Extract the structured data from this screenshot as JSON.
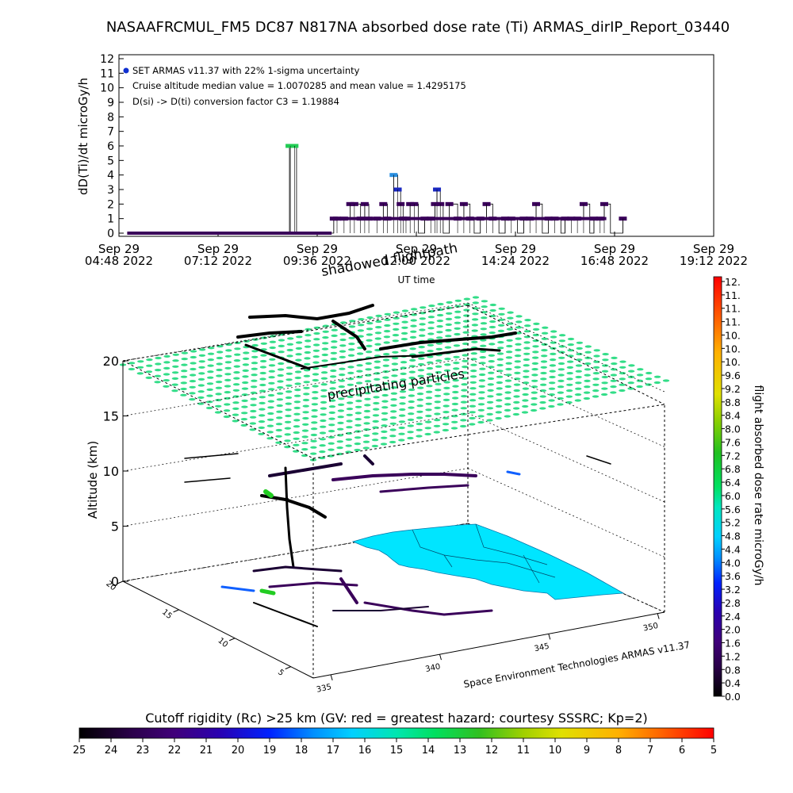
{
  "title": "NASAAFRCMUL_FM5 DC87 N817NA absorbed dose rate (Ti) ARMAS_dirIP_Report_03440",
  "chart_data": [
    {
      "type": "line",
      "ylabel": "dD(Ti)/dt microGy/h",
      "xlabel": "UT time",
      "ylim": [
        0,
        12
      ],
      "yticks": [
        "0",
        "1",
        "2",
        "3",
        "4",
        "5",
        "6",
        "7",
        "8",
        "9",
        "10",
        "11",
        "12"
      ],
      "xticks": [
        {
          "day": "Sep 29",
          "time": "04:48 2022"
        },
        {
          "day": "Sep 29",
          "time": "07:12 2022"
        },
        {
          "day": "Sep 29",
          "time": "09:36 2022"
        },
        {
          "day": "Sep 29",
          "time": "12:00 2022"
        },
        {
          "day": "Sep 29",
          "time": "14:24 2022"
        },
        {
          "day": "Sep 29",
          "time": "16:48 2022"
        },
        {
          "day": "Sep 29",
          "time": "19:12 2022"
        }
      ],
      "xlim_hours": [
        4.8,
        19.2
      ],
      "annotations": [
        "SET ARMAS v11.37 with 22% 1-sigma uncertainty",
        "Cruise altitude median value = 1.0070285 and mean value = 1.4295175",
        "D(si) -> D(ti) conversion factor C3 = 1.19884"
      ],
      "series": [
        {
          "x_hours": [
            5.0,
            5.5,
            6.0,
            6.5,
            7.0,
            7.5,
            8.0,
            8.5,
            8.93,
            8.95,
            9.05,
            9.1,
            9.2,
            9.6,
            9.95,
            10.0,
            10.08,
            10.25,
            10.4,
            10.5,
            10.65,
            10.75,
            10.85,
            11.05,
            11.2,
            11.3,
            11.45,
            11.55,
            11.62,
            11.68,
            11.75,
            11.85,
            11.95,
            12.05,
            12.2,
            12.35,
            12.45,
            12.5,
            12.58,
            12.65,
            12.8,
            13.0,
            13.15,
            13.3,
            13.4,
            13.55,
            13.7,
            13.85,
            14.0,
            14.15,
            14.3,
            14.45,
            14.6,
            14.75,
            14.9,
            15.05,
            15.2,
            15.35,
            15.5,
            15.6,
            15.75,
            15.9,
            16.05,
            16.2,
            16.3,
            16.45,
            16.55,
            16.7,
            16.85,
            17.0
          ],
          "y": [
            0,
            0,
            0,
            0,
            0,
            0,
            0,
            0,
            6,
            6,
            6,
            0,
            0,
            0,
            0,
            1,
            1,
            1,
            2,
            2,
            1,
            2,
            1,
            1,
            2,
            1,
            4,
            3,
            2,
            1,
            1,
            2,
            2,
            0,
            1,
            1,
            2,
            3,
            2,
            0,
            2,
            1,
            2,
            1,
            0,
            1,
            2,
            1,
            0,
            1,
            1,
            0,
            1,
            1,
            2,
            0,
            1,
            1,
            0,
            1,
            1,
            1,
            2,
            0,
            1,
            1,
            2,
            0,
            0,
            1
          ]
        }
      ]
    },
    {
      "type": "scatter",
      "ylabel": "Altitude (km)",
      "zticks": [
        "0",
        "5",
        "10",
        "15",
        "20"
      ],
      "lat_ticks": [
        "20",
        "15",
        "10",
        "5"
      ],
      "lon_ticks": [
        "335",
        "340",
        "345",
        "350"
      ],
      "overlays": [
        "precipitating particles",
        "shadowed flightpath"
      ],
      "credit": "Space Environment Technologies ARMAS v11.37"
    },
    {
      "type": "heatmap",
      "colorbar": "flight absorbed dose rate microGy/h",
      "colorbar_ticks": [
        "12.",
        "11.",
        "11.",
        "11.",
        "10.",
        "10.",
        "10.",
        "9.6",
        "9.2",
        "8.8",
        "8.4",
        "8.0",
        "7.6",
        "7.2",
        "6.8",
        "6.4",
        "6.0",
        "5.6",
        "5.2",
        "4.8",
        "4.4",
        "4.0",
        "3.6",
        "3.2",
        "2.8",
        "2.4",
        "2.0",
        "1.6",
        "1.2",
        "0.8",
        "0.4",
        "0.0"
      ]
    },
    {
      "type": "heatmap",
      "colorbar": "Cutoff rigidity (Rc) >25 km (GV: red = greatest hazard; courtesy SSSRC; Kp=2)",
      "colorbar_ticks": [
        "25",
        "24",
        "23",
        "22",
        "21",
        "20",
        "19",
        "18",
        "17",
        "16",
        "15",
        "14",
        "13",
        "12",
        "11",
        "10",
        "9",
        "8",
        "7",
        "6",
        "5"
      ]
    }
  ],
  "colors": {
    "series_line": "#3a005a",
    "dose_high": "#ff0000",
    "dose_mid": "#22cc22",
    "dose_low": "#000000",
    "grid": "#000000",
    "particles": "#33dd88",
    "map_land": "#00e5ff"
  },
  "icons": [
    "legend-dot-icon"
  ]
}
